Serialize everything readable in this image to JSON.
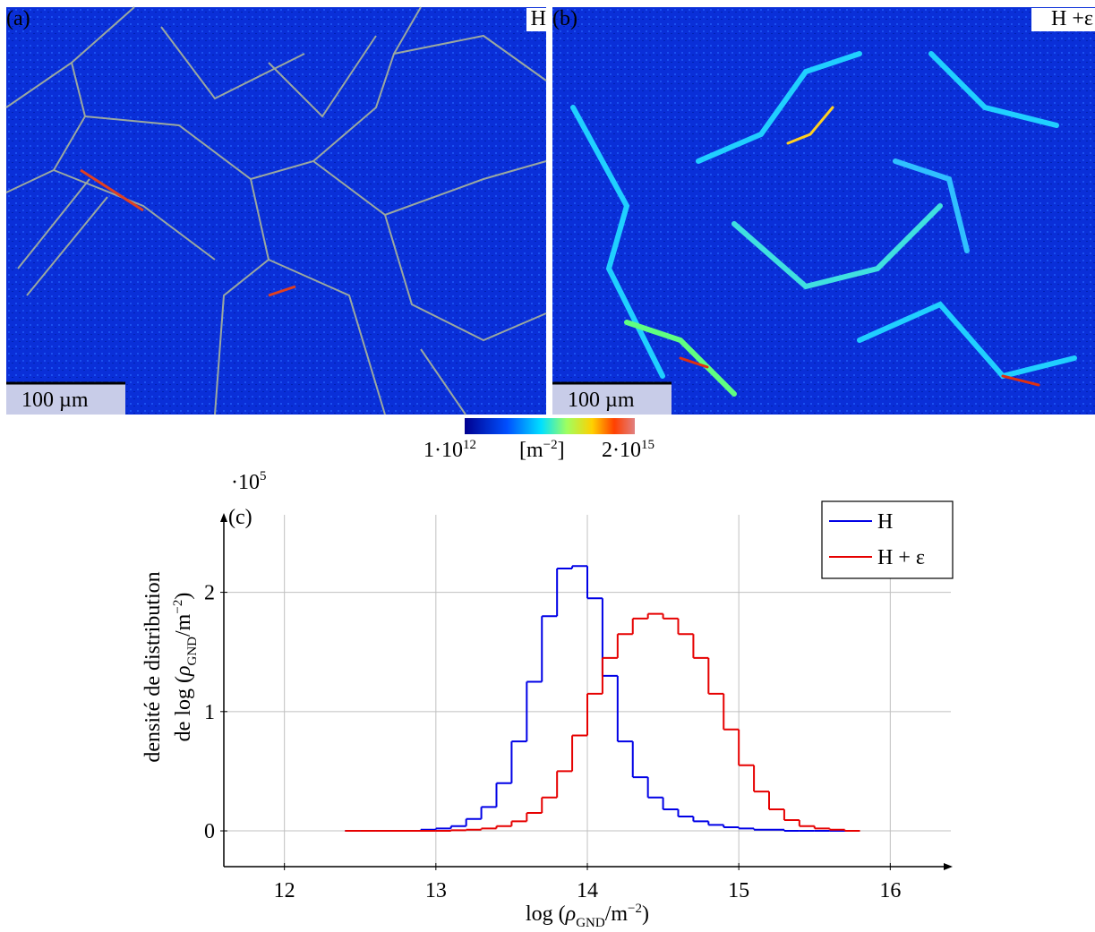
{
  "figure": {
    "panel_a": {
      "label": "(a)",
      "tag": "H",
      "scale_bar": "100 µm"
    },
    "panel_b": {
      "label": "(b)",
      "tag": "H +ε",
      "scale_bar": "100 µm"
    },
    "colorbar": {
      "min_base": "1·10",
      "min_exp": "12",
      "unit_open": "[m",
      "unit_exp": "−2",
      "unit_close": "]",
      "max_base": "2·10",
      "max_exp": "15"
    }
  },
  "chart_data": {
    "type": "histogram",
    "panel_label": "(c)",
    "y_multiplier": {
      "base": "·10",
      "exponent": "5"
    },
    "x_label": [
      "log (",
      "ρ",
      "GND",
      "/m",
      "−2",
      ")"
    ],
    "y_label": {
      "line1": "densité de distribution",
      "line2": [
        "de log (",
        "ρ",
        "GND",
        "/m",
        "−2",
        ")"
      ]
    },
    "bins": [
      12.4,
      12.5,
      12.6,
      12.7,
      12.8,
      12.9,
      13.0,
      13.1,
      13.2,
      13.3,
      13.4,
      13.5,
      13.6,
      13.7,
      13.8,
      13.9,
      14.0,
      14.1,
      14.2,
      14.3,
      14.4,
      14.5,
      14.6,
      14.7,
      14.8,
      14.9,
      15.0,
      15.1,
      15.2,
      15.3,
      15.4,
      15.5,
      15.6,
      15.7,
      15.8
    ],
    "series": [
      {
        "name": "H",
        "color": "#0000e6",
        "values": [
          0,
          0,
          0,
          0,
          0,
          0.01,
          0.02,
          0.04,
          0.1,
          0.2,
          0.4,
          0.75,
          1.25,
          1.8,
          2.2,
          2.22,
          1.95,
          1.3,
          0.75,
          0.45,
          0.28,
          0.18,
          0.12,
          0.08,
          0.05,
          0.03,
          0.02,
          0.01,
          0.01,
          0,
          0,
          0,
          0,
          0
        ]
      },
      {
        "name": "H + ε",
        "color": "#e60000",
        "values": [
          0,
          0,
          0,
          0,
          0,
          0,
          0,
          0.005,
          0.01,
          0.02,
          0.04,
          0.08,
          0.15,
          0.28,
          0.5,
          0.8,
          1.15,
          1.45,
          1.65,
          1.78,
          1.82,
          1.78,
          1.65,
          1.45,
          1.15,
          0.85,
          0.55,
          0.33,
          0.18,
          0.09,
          0.04,
          0.02,
          0.01,
          0
        ]
      }
    ],
    "xlim": [
      11.6,
      16.4
    ],
    "ylim": [
      -0.3,
      2.65
    ],
    "xticks": [
      12,
      13,
      14,
      15,
      16
    ],
    "yticks": [
      0,
      1,
      2
    ],
    "grid": true,
    "legend": "top-right"
  }
}
